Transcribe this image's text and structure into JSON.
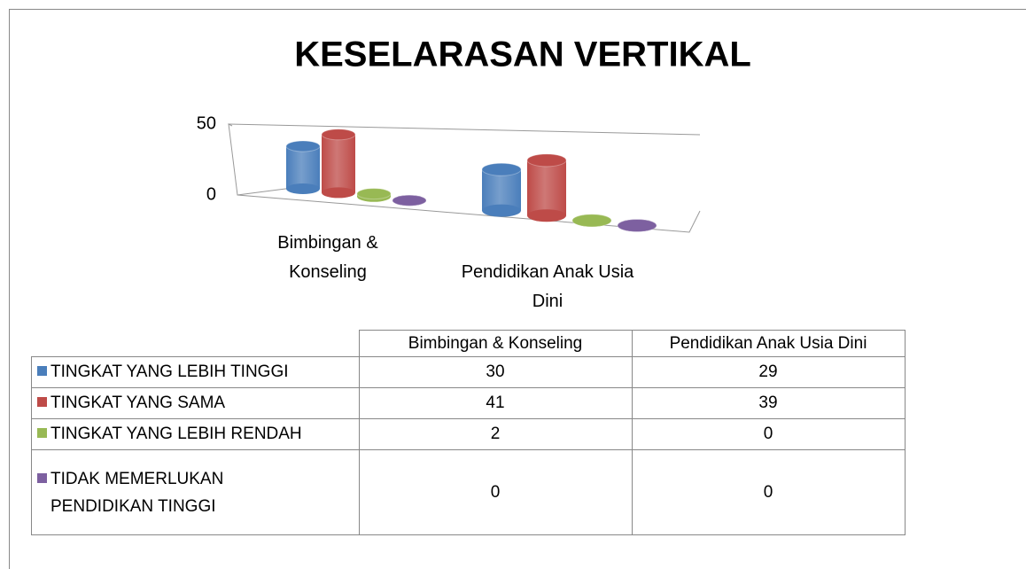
{
  "chart_data": {
    "type": "bar",
    "title": "KESELARASAN VERTIKAL",
    "categories": [
      "Bimbingan & Konseling",
      "Pendidikan Anak Usia Dini"
    ],
    "series": [
      {
        "name": "TINGKAT YANG LEBIH TINGGI",
        "color": "#4a7ebb",
        "values": [
          30,
          29
        ]
      },
      {
        "name": "TINGKAT YANG SAMA",
        "color": "#be4b48",
        "values": [
          41,
          39
        ]
      },
      {
        "name": "TINGKAT YANG LEBIH RENDAH",
        "color": "#98b954",
        "values": [
          2,
          0
        ]
      },
      {
        "name": "TIDAK MEMERLUKAN PENDIDIKAN TINGGI",
        "color": "#7d60a0",
        "values": [
          0,
          0
        ]
      }
    ],
    "ylim": [
      0,
      50
    ],
    "yticks": [
      0,
      50
    ],
    "grid": true
  }
}
